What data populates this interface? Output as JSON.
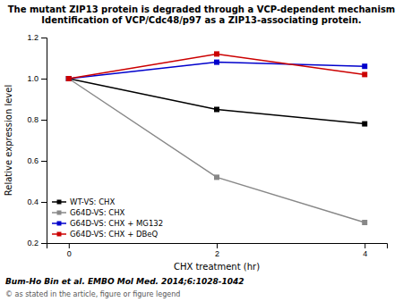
{
  "chart_data": {
    "type": "line",
    "title": "The mutant ZIP13 protein is degraded through a VCP-dependent mechanism Identification of VCP/Cdc48/p97 as a ZIP13-associating protein.",
    "x": [
      0,
      2,
      4
    ],
    "series": [
      {
        "name": "WT-VS: CHX",
        "color": "#000000",
        "values": [
          1.0,
          0.85,
          0.78
        ]
      },
      {
        "name": "G64D-VS: CHX",
        "color": "#888888",
        "values": [
          1.0,
          0.52,
          0.3
        ]
      },
      {
        "name": "G64D-VS: CHX + MG132",
        "color": "#0000cc",
        "values": [
          1.0,
          1.08,
          1.06
        ]
      },
      {
        "name": "G64D-VS: CHX + DBeQ",
        "color": "#cc0000",
        "values": [
          1.0,
          1.12,
          1.02
        ]
      }
    ],
    "xlabel": "CHX treatment (hr)",
    "ylabel": "Relative expression level",
    "xlim": [
      -0.3,
      4.3
    ],
    "ylim": [
      0.2,
      1.2
    ],
    "xticks": [
      0,
      2,
      4
    ],
    "yticks": [
      0.2,
      0.4,
      0.6,
      0.8,
      {
        "value": 1.0,
        "label": "1.0"
      },
      1.2
    ],
    "marker": "square",
    "legend": "lower left",
    "annotations": [
      "Bum-Ho Bin et al. EMBO Mol Med. 2014;6:1028-1042",
      "© as stated in the article, figure or figure legend"
    ]
  }
}
